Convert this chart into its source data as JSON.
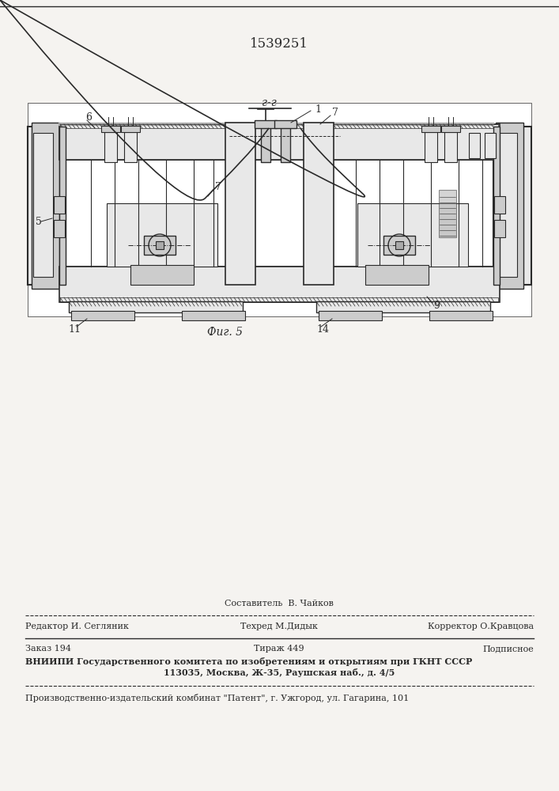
{
  "patent_number": "1539251",
  "bg_color": "#f5f3f0",
  "line_color": "#2a2a2a",
  "white": "#ffffff",
  "light_gray": "#e8e8e8",
  "med_gray": "#cccccc",
  "dark_gray": "#aaaaaa",
  "fig_label": "Фиг. 5",
  "section_label": "г-г",
  "footer_sestavitel": "Составитель  В. Чайков",
  "footer_redaktor": "Редактор И. Сегляник",
  "footer_tehred": "Техред М.Дидык",
  "footer_korrektor": "Корректор О.Кравцова",
  "footer_zakaz": "Заказ 194",
  "footer_tirazh": "Тираж 449",
  "footer_podpisnoe": "Подписное",
  "footer_vniipи": "ВНИИПИ Государственного комитета по изобретениям и открытиям при ГКНТ СССР",
  "footer_address": "113035, Москва, Ж-35, Раушская наб., д. 4/5",
  "footer_patent": "Производственно-издательский комбинат \"Патент\", г. Ужгород, ул. Гагарина, 101"
}
